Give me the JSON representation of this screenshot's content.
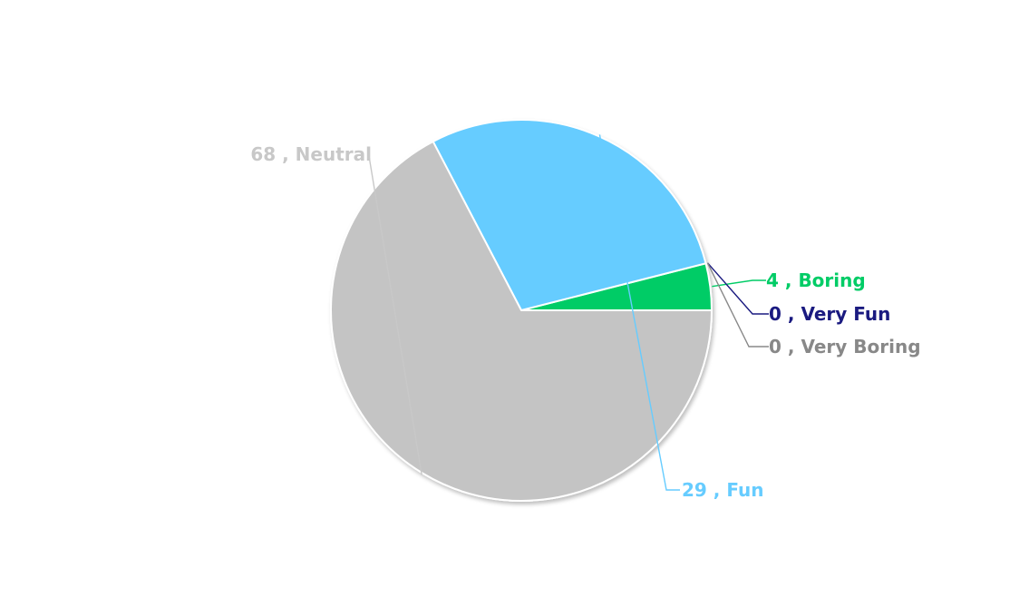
{
  "chart_data": {
    "type": "pie",
    "slices": [
      {
        "label": "Boring",
        "value": 4,
        "color": "#00cc66",
        "label_text": "4 , Boring"
      },
      {
        "label": "Very Fun",
        "value": 0,
        "color": "#1a1a80",
        "label_text": "0 , Very Fun"
      },
      {
        "label": "Very Boring",
        "value": 0,
        "color": "#888888",
        "label_text": "0 , Very Boring"
      },
      {
        "label": "Fun",
        "value": 29,
        "color": "#66ccff",
        "label_text": "29 , Fun"
      },
      {
        "label": "Neutral",
        "value": 68,
        "color": "#c4c4c4",
        "label_text": "68 , Neutral"
      }
    ],
    "title": "",
    "legend": "none",
    "label_color_neutral": "#c8c8c8"
  }
}
